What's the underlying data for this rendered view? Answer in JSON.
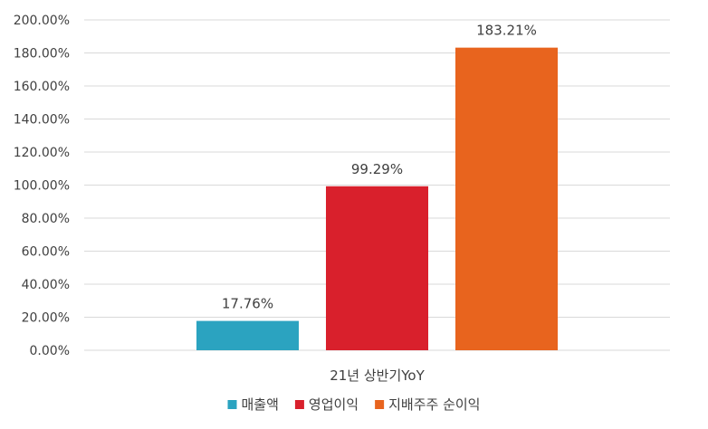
{
  "chart_data": {
    "type": "bar",
    "categories": [
      "21년 상반기YoY"
    ],
    "series": [
      {
        "name": "매출액",
        "values": [
          17.76
        ],
        "label": "17.76%",
        "color": "#2ba3c0"
      },
      {
        "name": "영업이익",
        "values": [
          99.29
        ],
        "label": "99.29%",
        "color": "#d9202c"
      },
      {
        "name": "지배주주 순이익",
        "values": [
          183.21
        ],
        "label": "183.21%",
        "color": "#e8641e"
      }
    ],
    "yticks": [
      "0.00%",
      "20.00%",
      "40.00%",
      "60.00%",
      "80.00%",
      "100.00%",
      "120.00%",
      "140.00%",
      "160.00%",
      "180.00%",
      "200.00%"
    ],
    "ylim": [
      0,
      200
    ],
    "title": "",
    "xlabel": "",
    "ylabel": "",
    "grid": true,
    "legend_position": "bottom"
  }
}
